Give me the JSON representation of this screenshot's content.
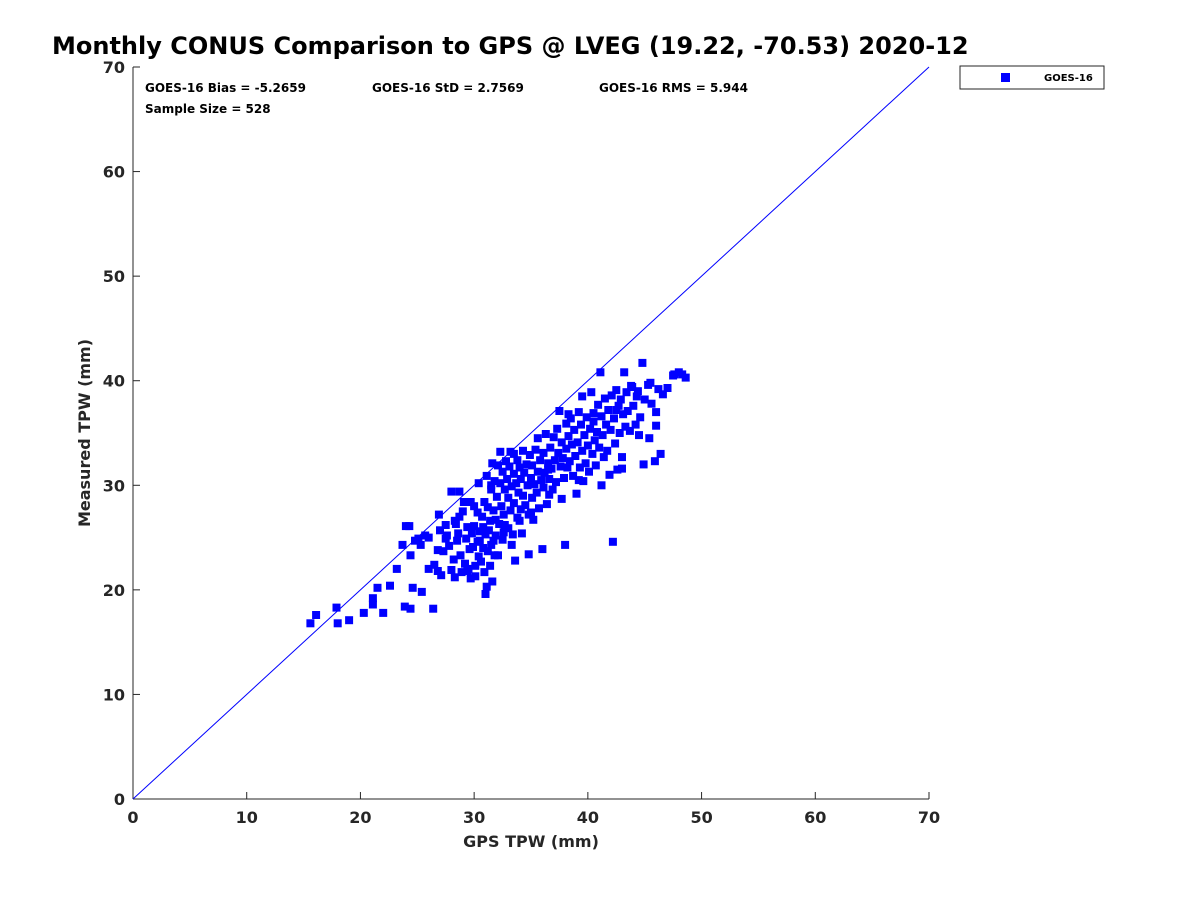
{
  "chart_data": {
    "type": "scatter",
    "title": "Monthly CONUS Comparison to GPS @ LVEG (19.22, -70.53) 2020-12",
    "xlabel": "GPS TPW (mm)",
    "ylabel": "Measured TPW (mm)",
    "xlim": [
      0,
      70
    ],
    "ylim": [
      0,
      70
    ],
    "xticks": [
      0,
      10,
      20,
      30,
      40,
      50,
      60,
      70
    ],
    "yticks": [
      0,
      10,
      20,
      30,
      40,
      50,
      60,
      70
    ],
    "grid": false,
    "legend_position": "outside-top-right",
    "reference_line": {
      "name": "1:1 line",
      "x": [
        0,
        70
      ],
      "y": [
        0,
        70
      ],
      "color": "#0000ff"
    },
    "stats": {
      "bias": "GOES-16 Bias = -5.2659",
      "std": "GOES-16 StD = 2.7569",
      "rms": "GOES-16 RMS = 5.944",
      "sample": "Sample Size = 528"
    },
    "series": [
      {
        "name": "GOES-16",
        "color": "#0000ff",
        "marker": "square",
        "points": [
          [
            15.6,
            16.8
          ],
          [
            16.1,
            17.6
          ],
          [
            17.9,
            18.3
          ],
          [
            18.0,
            16.8
          ],
          [
            19.0,
            17.1
          ],
          [
            20.3,
            17.8
          ],
          [
            21.1,
            18.6
          ],
          [
            21.1,
            19.2
          ],
          [
            21.5,
            20.2
          ],
          [
            22.0,
            17.8
          ],
          [
            22.6,
            20.4
          ],
          [
            23.2,
            22.0
          ],
          [
            23.7,
            24.3
          ],
          [
            23.9,
            18.4
          ],
          [
            24.0,
            26.1
          ],
          [
            24.3,
            26.1
          ],
          [
            24.4,
            18.2
          ],
          [
            24.4,
            23.3
          ],
          [
            24.6,
            20.2
          ],
          [
            24.8,
            24.7
          ],
          [
            25.1,
            24.9
          ],
          [
            25.4,
            19.8
          ],
          [
            25.7,
            25.2
          ],
          [
            26.0,
            25.0
          ],
          [
            26.4,
            18.2
          ],
          [
            26.5,
            22.4
          ],
          [
            26.8,
            21.8
          ],
          [
            26.8,
            23.8
          ],
          [
            26.9,
            27.2
          ],
          [
            27.0,
            25.7
          ],
          [
            27.1,
            21.4
          ],
          [
            27.3,
            23.7
          ],
          [
            27.5,
            26.2
          ],
          [
            27.6,
            25.2
          ],
          [
            27.8,
            24.2
          ],
          [
            28.0,
            29.4
          ],
          [
            28.0,
            21.9
          ],
          [
            28.2,
            22.9
          ],
          [
            28.3,
            21.2
          ],
          [
            28.4,
            26.3
          ],
          [
            28.5,
            24.7
          ],
          [
            28.6,
            25.4
          ],
          [
            28.7,
            27.0
          ],
          [
            28.7,
            29.4
          ],
          [
            28.8,
            23.3
          ],
          [
            28.9,
            21.7
          ],
          [
            29.1,
            28.4
          ],
          [
            29.2,
            22.5
          ],
          [
            29.3,
            24.9
          ],
          [
            29.4,
            26.0
          ],
          [
            29.4,
            21.8
          ],
          [
            29.6,
            23.9
          ],
          [
            29.7,
            28.4
          ],
          [
            29.7,
            21.1
          ],
          [
            29.8,
            25.4
          ],
          [
            29.9,
            24.1
          ],
          [
            30.0,
            26.1
          ],
          [
            30.1,
            21.3
          ],
          [
            30.1,
            22.3
          ],
          [
            30.3,
            27.4
          ],
          [
            30.3,
            24.6
          ],
          [
            30.4,
            23.2
          ],
          [
            30.4,
            30.2
          ],
          [
            30.5,
            25.6
          ],
          [
            30.6,
            22.7
          ],
          [
            30.7,
            27.0
          ],
          [
            30.8,
            24.0
          ],
          [
            30.8,
            26.0
          ],
          [
            30.9,
            21.7
          ],
          [
            30.9,
            28.4
          ],
          [
            31.0,
            25.3
          ],
          [
            31.0,
            19.6
          ],
          [
            31.1,
            20.3
          ],
          [
            31.1,
            30.9
          ],
          [
            31.2,
            23.7
          ],
          [
            31.2,
            27.9
          ],
          [
            31.3,
            25.7
          ],
          [
            31.4,
            22.3
          ],
          [
            31.4,
            26.6
          ],
          [
            31.5,
            24.3
          ],
          [
            31.5,
            29.6
          ],
          [
            31.6,
            20.8
          ],
          [
            31.6,
            32.1
          ],
          [
            31.7,
            24.7
          ],
          [
            31.7,
            27.6
          ],
          [
            31.8,
            30.4
          ],
          [
            31.9,
            26.7
          ],
          [
            31.9,
            25.2
          ],
          [
            32.0,
            28.9
          ],
          [
            32.1,
            31.9
          ],
          [
            32.1,
            23.3
          ],
          [
            32.2,
            26.3
          ],
          [
            32.3,
            30.2
          ],
          [
            32.3,
            33.2
          ],
          [
            32.4,
            28.0
          ],
          [
            32.5,
            24.8
          ],
          [
            32.5,
            31.3
          ],
          [
            32.6,
            27.2
          ],
          [
            32.7,
            29.6
          ],
          [
            32.7,
            26.2
          ],
          [
            32.8,
            32.3
          ],
          [
            32.9,
            30.6
          ],
          [
            33.0,
            25.9
          ],
          [
            33.0,
            28.8
          ],
          [
            33.1,
            31.8
          ],
          [
            33.2,
            27.6
          ],
          [
            33.2,
            33.2
          ],
          [
            33.3,
            29.9
          ],
          [
            33.4,
            25.3
          ],
          [
            33.5,
            31.1
          ],
          [
            33.5,
            28.3
          ],
          [
            33.6,
            22.8
          ],
          [
            33.7,
            30.2
          ],
          [
            33.8,
            26.9
          ],
          [
            33.8,
            32.4
          ],
          [
            33.9,
            29.3
          ],
          [
            34.0,
            31.7
          ],
          [
            34.1,
            27.7
          ],
          [
            34.1,
            30.6
          ],
          [
            34.2,
            25.4
          ],
          [
            34.3,
            33.3
          ],
          [
            34.3,
            29.0
          ],
          [
            34.4,
            31.2
          ],
          [
            34.5,
            28.1
          ],
          [
            34.6,
            32.0
          ],
          [
            34.7,
            30.0
          ],
          [
            34.8,
            23.4
          ],
          [
            34.8,
            27.2
          ],
          [
            34.9,
            32.9
          ],
          [
            35.0,
            30.7
          ],
          [
            35.1,
            28.8
          ],
          [
            35.1,
            31.9
          ],
          [
            35.2,
            26.7
          ],
          [
            35.3,
            30.1
          ],
          [
            35.4,
            33.4
          ],
          [
            35.5,
            29.3
          ],
          [
            35.6,
            34.5
          ],
          [
            35.6,
            31.3
          ],
          [
            35.7,
            27.8
          ],
          [
            35.8,
            32.4
          ],
          [
            35.9,
            30.5
          ],
          [
            36.0,
            23.9
          ],
          [
            36.1,
            29.8
          ],
          [
            36.1,
            33.1
          ],
          [
            36.2,
            31.2
          ],
          [
            36.3,
            34.9
          ],
          [
            36.4,
            28.2
          ],
          [
            36.5,
            32.1
          ],
          [
            36.6,
            30.6
          ],
          [
            36.7,
            33.6
          ],
          [
            36.8,
            31.6
          ],
          [
            36.9,
            29.6
          ],
          [
            37.0,
            34.6
          ],
          [
            37.1,
            32.4
          ],
          [
            37.2,
            30.3
          ],
          [
            37.3,
            35.4
          ],
          [
            37.4,
            33.1
          ],
          [
            37.5,
            37.1
          ],
          [
            37.6,
            31.8
          ],
          [
            37.7,
            34.1
          ],
          [
            37.8,
            32.6
          ],
          [
            37.9,
            30.7
          ],
          [
            38.0,
            24.3
          ],
          [
            38.1,
            35.9
          ],
          [
            38.1,
            33.5
          ],
          [
            38.2,
            31.7
          ],
          [
            38.3,
            34.7
          ],
          [
            38.4,
            32.3
          ],
          [
            38.5,
            36.4
          ],
          [
            38.6,
            33.9
          ],
          [
            38.7,
            30.9
          ],
          [
            38.8,
            35.3
          ],
          [
            38.9,
            32.8
          ],
          [
            39.0,
            29.2
          ],
          [
            39.1,
            34.1
          ],
          [
            39.2,
            37.0
          ],
          [
            39.3,
            31.7
          ],
          [
            39.4,
            35.8
          ],
          [
            39.5,
            33.3
          ],
          [
            39.6,
            30.4
          ],
          [
            39.7,
            34.8
          ],
          [
            39.8,
            32.1
          ],
          [
            39.9,
            36.5
          ],
          [
            40.0,
            33.8
          ],
          [
            40.1,
            31.3
          ],
          [
            40.2,
            35.4
          ],
          [
            40.3,
            38.9
          ],
          [
            40.4,
            33.0
          ],
          [
            40.5,
            36.1
          ],
          [
            40.6,
            34.3
          ],
          [
            40.7,
            31.9
          ],
          [
            40.8,
            35.1
          ],
          [
            40.9,
            37.7
          ],
          [
            41.0,
            33.6
          ],
          [
            41.1,
            40.8
          ],
          [
            41.2,
            36.6
          ],
          [
            41.3,
            34.8
          ],
          [
            41.4,
            32.7
          ],
          [
            41.5,
            38.3
          ],
          [
            41.6,
            35.8
          ],
          [
            41.7,
            33.3
          ],
          [
            41.8,
            37.2
          ],
          [
            41.9,
            31.0
          ],
          [
            42.0,
            35.3
          ],
          [
            42.1,
            38.6
          ],
          [
            42.2,
            24.6
          ],
          [
            42.3,
            36.4
          ],
          [
            42.4,
            34.0
          ],
          [
            42.5,
            39.1
          ],
          [
            42.6,
            31.5
          ],
          [
            42.7,
            37.6
          ],
          [
            42.8,
            35.0
          ],
          [
            42.9,
            38.2
          ],
          [
            43.0,
            32.7
          ],
          [
            43.1,
            36.8
          ],
          [
            43.2,
            40.8
          ],
          [
            43.3,
            35.6
          ],
          [
            43.4,
            38.9
          ],
          [
            43.5,
            37.1
          ],
          [
            43.7,
            35.2
          ],
          [
            43.9,
            39.4
          ],
          [
            44.0,
            37.6
          ],
          [
            44.2,
            35.8
          ],
          [
            44.4,
            39.0
          ],
          [
            44.6,
            36.5
          ],
          [
            44.8,
            41.7
          ],
          [
            44.9,
            32.0
          ],
          [
            45.0,
            38.2
          ],
          [
            45.3,
            39.6
          ],
          [
            45.4,
            34.5
          ],
          [
            45.6,
            37.8
          ],
          [
            45.9,
            32.3
          ],
          [
            46.0,
            35.7
          ],
          [
            46.2,
            39.2
          ],
          [
            46.4,
            33.0
          ],
          [
            46.6,
            38.7
          ],
          [
            47.0,
            39.3
          ],
          [
            47.6,
            40.6
          ],
          [
            48.0,
            40.8
          ],
          [
            48.3,
            40.6
          ],
          [
            48.6,
            40.3
          ],
          [
            30.0,
            28.0
          ],
          [
            29.0,
            27.5
          ],
          [
            31.5,
            30.0
          ],
          [
            33.5,
            33.0
          ],
          [
            34.0,
            26.6
          ],
          [
            36.5,
            31.5
          ],
          [
            38.3,
            36.8
          ],
          [
            39.5,
            38.5
          ],
          [
            40.5,
            36.9
          ],
          [
            42.5,
            37.2
          ],
          [
            43.8,
            39.5
          ],
          [
            44.3,
            38.5
          ],
          [
            45.5,
            39.8
          ],
          [
            46.0,
            37.0
          ],
          [
            47.5,
            40.5
          ],
          [
            27.5,
            24.9
          ],
          [
            28.3,
            26.6
          ],
          [
            29.5,
            22.0
          ],
          [
            30.5,
            24.7
          ],
          [
            31.8,
            23.3
          ],
          [
            32.6,
            25.5
          ],
          [
            33.3,
            24.3
          ],
          [
            35.0,
            27.4
          ],
          [
            36.6,
            29.1
          ],
          [
            37.7,
            28.7
          ],
          [
            39.2,
            30.5
          ],
          [
            41.2,
            30.0
          ],
          [
            43.0,
            31.6
          ],
          [
            44.5,
            34.8
          ],
          [
            26.0,
            22.0
          ],
          [
            25.3,
            24.3
          ]
        ]
      }
    ]
  }
}
